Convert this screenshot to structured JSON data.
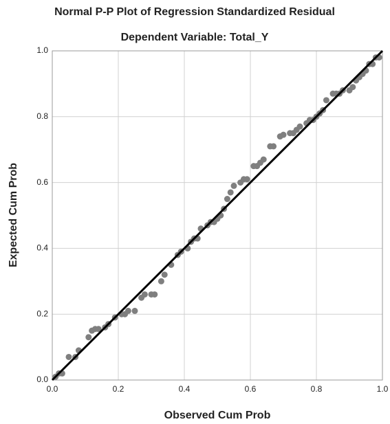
{
  "chart_data": {
    "type": "scatter",
    "title": "Normal P-P Plot of Regression Standardized Residual",
    "subtitle": "Dependent Variable: Total_Y",
    "x_label": "Observed Cum Prob",
    "y_label": "Expected Cum Prob",
    "xlim": [
      0,
      1
    ],
    "ylim": [
      0,
      1
    ],
    "xticks": [
      {
        "value": 0,
        "label": "0.0"
      },
      0.2,
      0.4,
      0.6,
      0.8,
      {
        "value": 1,
        "label": "1.0"
      }
    ],
    "yticks": [
      {
        "value": 0,
        "label": "0.0"
      },
      0.2,
      0.4,
      0.6,
      0.8,
      {
        "value": 1,
        "label": "1.0"
      }
    ],
    "grid": true,
    "color": "#7f7f7f",
    "line_color": "#000000",
    "x": [
      0.01,
      0.02,
      0.03,
      0.05,
      0.07,
      0.08,
      0.11,
      0.12,
      0.13,
      0.14,
      0.16,
      0.17,
      0.19,
      0.21,
      0.22,
      0.23,
      0.25,
      0.27,
      0.28,
      0.3,
      0.31,
      0.33,
      0.34,
      0.36,
      0.38,
      0.39,
      0.41,
      0.42,
      0.43,
      0.44,
      0.45,
      0.47,
      0.48,
      0.49,
      0.5,
      0.51,
      0.52,
      0.53,
      0.54,
      0.55,
      0.57,
      0.58,
      0.59,
      0.61,
      0.62,
      0.63,
      0.64,
      0.66,
      0.67,
      0.69,
      0.7,
      0.72,
      0.73,
      0.74,
      0.75,
      0.77,
      0.78,
      0.79,
      0.8,
      0.81,
      0.82,
      0.83,
      0.85,
      0.86,
      0.87,
      0.88,
      0.9,
      0.91,
      0.92,
      0.93,
      0.94,
      0.95,
      0.96,
      0.97,
      0.98,
      0.99
    ],
    "y": [
      0.01,
      0.02,
      0.02,
      0.07,
      0.07,
      0.09,
      0.13,
      0.15,
      0.155,
      0.155,
      0.16,
      0.17,
      0.19,
      0.2,
      0.2,
      0.21,
      0.21,
      0.25,
      0.26,
      0.26,
      0.26,
      0.3,
      0.32,
      0.35,
      0.38,
      0.39,
      0.4,
      0.42,
      0.43,
      0.43,
      0.46,
      0.47,
      0.48,
      0.48,
      0.49,
      0.5,
      0.52,
      0.55,
      0.57,
      0.59,
      0.6,
      0.61,
      0.61,
      0.65,
      0.65,
      0.66,
      0.67,
      0.71,
      0.71,
      0.74,
      0.745,
      0.75,
      0.75,
      0.76,
      0.77,
      0.78,
      0.79,
      0.79,
      0.8,
      0.81,
      0.82,
      0.85,
      0.87,
      0.87,
      0.87,
      0.88,
      0.88,
      0.89,
      0.91,
      0.92,
      0.93,
      0.94,
      0.96,
      0.96,
      0.98,
      0.98
    ]
  }
}
